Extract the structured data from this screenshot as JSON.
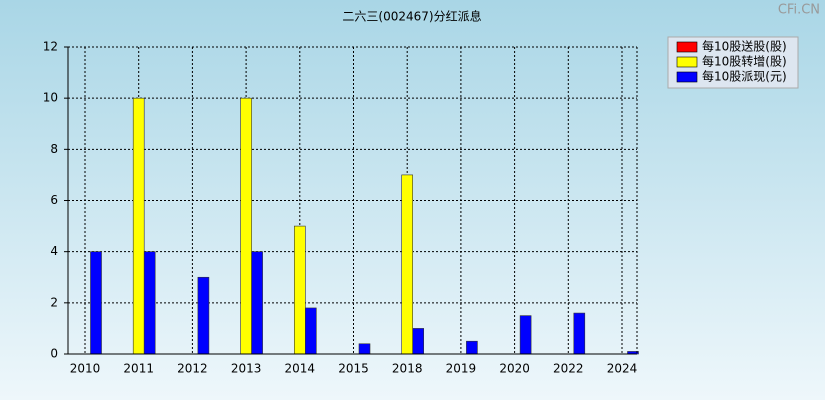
{
  "chart_data": {
    "type": "bar",
    "title": "二六三(002467)分红派息",
    "watermark": "CFi.CN",
    "categories": [
      "2010",
      "2011",
      "2012",
      "2013",
      "2014",
      "2015",
      "2018",
      "2019",
      "2020",
      "2022",
      "2024"
    ],
    "series": [
      {
        "name": "每10股送股(股)",
        "color": "#ff0000",
        "values": [
          0,
          0,
          0,
          0,
          0,
          0,
          0,
          0,
          0,
          0,
          0
        ]
      },
      {
        "name": "每10股转增(股)",
        "color": "#ffff00",
        "values": [
          0,
          10,
          0,
          10,
          5,
          0,
          7,
          0,
          0,
          0,
          0
        ]
      },
      {
        "name": "每10股派现(元)",
        "color": "#0000ff",
        "values": [
          4,
          4,
          3,
          4,
          1.8,
          0.4,
          1,
          0.5,
          1.5,
          1.6,
          0.1
        ]
      }
    ],
    "ylim": [
      0,
      12
    ],
    "yticks": [
      0,
      2,
      4,
      6,
      8,
      10,
      12
    ],
    "grid": true,
    "legend": "top-right"
  }
}
